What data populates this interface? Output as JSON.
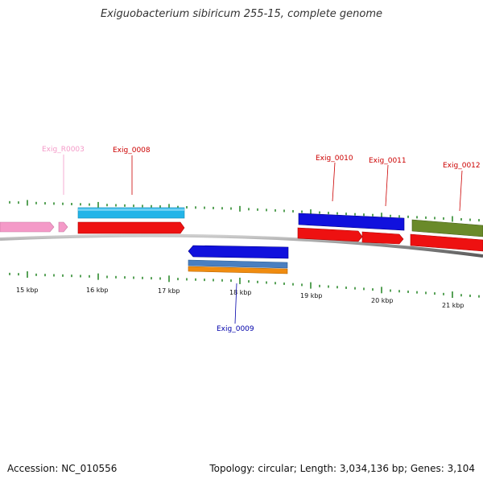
{
  "title": "Exiguobacterium sibiricum 255-15, complete genome",
  "footer": {
    "accession": "Accession: NC_010556",
    "summary": "Topology: circular; Length: 3,034,136 bp; Genes: 3,104"
  },
  "colors": {
    "backbone": "#7a7a7a",
    "tick": "#2e8b2e",
    "red_cds": "#ee1111",
    "pink_rrna": "#f49ac8",
    "light_blue": "#22b4e8",
    "blue": "#1111dd",
    "steel_blue": "#4a7fc0",
    "orange": "#f08c10",
    "olive": "#6a8a2a"
  },
  "scale_labels": [
    "15 kbp",
    "16 kbp",
    "17 kbp",
    "18 kbp",
    "19 kbp",
    "20 kbp",
    "21 kbp"
  ],
  "gene_labels": [
    {
      "id": "r0003",
      "text": "Exig_R0003",
      "color": "#f49ac8"
    },
    {
      "id": "0008",
      "text": "Exig_0008",
      "color": "#cc0000"
    },
    {
      "id": "0010",
      "text": "Exig_0010",
      "color": "#cc0000"
    },
    {
      "id": "0011",
      "text": "Exig_0011",
      "color": "#cc0000"
    },
    {
      "id": "0012",
      "text": "Exig_0012",
      "color": "#cc0000"
    },
    {
      "id": "0009",
      "text": "Exig_0009",
      "color": "#0000aa"
    }
  ]
}
